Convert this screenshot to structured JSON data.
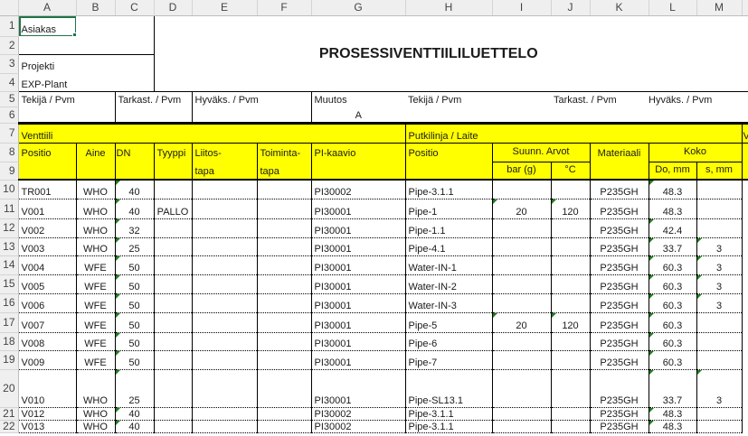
{
  "columns": [
    "A",
    "B",
    "C",
    "D",
    "E",
    "F",
    "G",
    "H",
    "I",
    "J",
    "K",
    "L",
    "M",
    ""
  ],
  "header": {
    "asiakas": "Asiakas",
    "projekti": "Projekti",
    "project_name": "EXP-Plant",
    "title": "PROSESSIVENTTIILILUETTELO",
    "tekija": "Tekijä / Pvm",
    "tarkast": "Tarkast. / Pvm",
    "hyvaks": "Hyväks. / Pvm",
    "muutos": "Muutos",
    "revision": "A",
    "tekija2": "Tekijä / Pvm",
    "tarkast2": "Tarkast. / Pvm",
    "hyvaks2": "Hyväks. / Pvm"
  },
  "table_header": {
    "venttiili": "Venttiili",
    "putkilinja": "Putkilinja / Laite",
    "cut_v": "V",
    "positio": "Positio",
    "aine": "Aine",
    "dn": "DN",
    "tyyppi": "Tyyppi",
    "liitos1": "Liitos-",
    "liitos2": "tapa",
    "toiminta1": "Toiminta-",
    "toiminta2": "tapa",
    "pi": "PI-kaavio",
    "positio2": "Positio",
    "suunn": "Suunn. Arvot",
    "materiaali": "Materiaali",
    "koko": "Koko",
    "bar": "bar (g)",
    "degc": "°C",
    "do": "Do, mm",
    "s": "s, mm"
  },
  "rows": [
    {
      "n": "10",
      "cells": [
        "TR001",
        "WHO",
        "40",
        "",
        "",
        "",
        "PI30002",
        "Pipe-3.1.1",
        "",
        "",
        "P235GH",
        "48.3",
        ""
      ],
      "marks": [
        "C",
        "L"
      ]
    },
    {
      "n": "11",
      "cells": [
        "V001",
        "WHO",
        "40",
        "PALLO",
        "",
        "",
        "PI30001",
        "Pipe-1",
        "20",
        "120",
        "P235GH",
        "48.3",
        ""
      ],
      "marks": [
        "C",
        "I",
        "J"
      ]
    },
    {
      "n": "12",
      "cells": [
        "V002",
        "WHO",
        "32",
        "",
        "",
        "",
        "PI30001",
        "Pipe-1.1",
        "",
        "",
        "P235GH",
        "42.4",
        ""
      ],
      "marks": [
        "C",
        "L"
      ]
    },
    {
      "n": "13",
      "cells": [
        "V003",
        "WHO",
        "25",
        "",
        "",
        "",
        "PI30001",
        "Pipe-4.1",
        "",
        "",
        "P235GH",
        "33.7",
        "3"
      ],
      "marks": [
        "C",
        "L",
        "M"
      ]
    },
    {
      "n": "14",
      "cells": [
        "V004",
        "WFE",
        "50",
        "",
        "",
        "",
        "PI30001",
        "Water-IN-1",
        "",
        "",
        "P235GH",
        "60.3",
        "3"
      ],
      "marks": [
        "C",
        "L",
        "M"
      ]
    },
    {
      "n": "15",
      "cells": [
        "V005",
        "WFE",
        "50",
        "",
        "",
        "",
        "PI30001",
        "Water-IN-2",
        "",
        "",
        "P235GH",
        "60.3",
        "3"
      ],
      "marks": [
        "C",
        "L",
        "M"
      ]
    },
    {
      "n": "16",
      "cells": [
        "V006",
        "WFE",
        "50",
        "",
        "",
        "",
        "PI30001",
        "Water-IN-3",
        "",
        "",
        "P235GH",
        "60.3",
        "3"
      ],
      "marks": [
        "C",
        "L",
        "M"
      ]
    },
    {
      "n": "17",
      "cells": [
        "V007",
        "WFE",
        "50",
        "",
        "",
        "",
        "PI30001",
        "Pipe-5",
        "20",
        "120",
        "P235GH",
        "60.3",
        ""
      ],
      "marks": [
        "C",
        "I",
        "J",
        "L"
      ]
    },
    {
      "n": "18",
      "cells": [
        "V008",
        "WFE",
        "50",
        "",
        "",
        "",
        "PI30001",
        "Pipe-6",
        "",
        "",
        "P235GH",
        "60.3",
        ""
      ],
      "marks": [
        "C",
        "L"
      ]
    },
    {
      "n": "19",
      "cells": [
        "V009",
        "WFE",
        "50",
        "",
        "",
        "",
        "PI30001",
        "Pipe-7",
        "",
        "",
        "P235GH",
        "60.3",
        ""
      ],
      "marks": [
        "C",
        "L"
      ]
    },
    {
      "n": "20",
      "cells": [
        "V010",
        "WHO",
        "25",
        "",
        "",
        "",
        "PI30001",
        "Pipe-SL13.1",
        "",
        "",
        "P235GH",
        "33.7",
        "3"
      ],
      "marks": [
        "C",
        "L",
        "M"
      ]
    },
    {
      "n": "21",
      "cells": [
        "V012",
        "WHO",
        "40",
        "",
        "",
        "",
        "PI30002",
        "Pipe-3.1.1",
        "",
        "",
        "P235GH",
        "48.3",
        ""
      ],
      "marks": [
        "C",
        "L"
      ]
    },
    {
      "n": "22",
      "cells": [
        "V013",
        "WHO",
        "40",
        "",
        "",
        "",
        "PI30002",
        "Pipe-3.1.1",
        "",
        "",
        "P235GH",
        "48.3",
        ""
      ],
      "marks": [
        "C",
        "L"
      ]
    }
  ],
  "colors": {
    "header_fill": "#ffff00",
    "selection": "#217346",
    "comment_marker": "#1a7f1a"
  }
}
